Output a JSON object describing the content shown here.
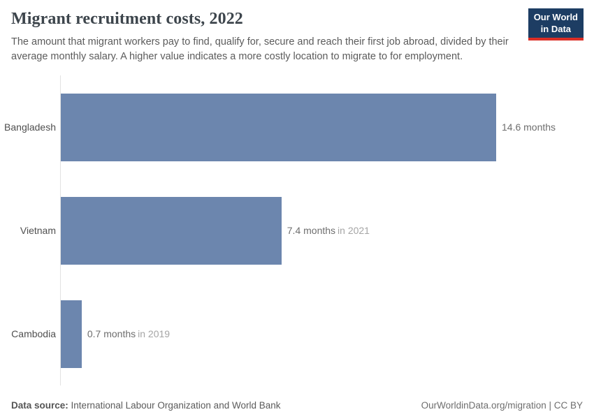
{
  "header": {
    "title": "Migrant recruitment costs, 2022",
    "subtitle": "The amount that migrant workers pay to find, qualify for, secure and reach their first job abroad, divided by their average monthly salary. A higher value indicates a more costly location to migrate to for employment.",
    "logo": {
      "line1": "Our World",
      "line2": "in Data"
    }
  },
  "chart_data": {
    "type": "bar",
    "orientation": "horizontal",
    "title": "Migrant recruitment costs, 2022",
    "unit": "months",
    "xlim": [
      0,
      14.6
    ],
    "grid": false,
    "categories": [
      "Bangladesh",
      "Vietnam",
      "Cambodia"
    ],
    "values": [
      14.6,
      7.4,
      0.7
    ],
    "bars": [
      {
        "category": "Bangladesh",
        "value": 14.6,
        "value_label": "14.6 months",
        "year_note": ""
      },
      {
        "category": "Vietnam",
        "value": 7.4,
        "value_label": "7.4 months",
        "year_note": "in 2021"
      },
      {
        "category": "Cambodia",
        "value": 0.7,
        "value_label": "0.7 months",
        "year_note": "in 2019"
      }
    ]
  },
  "footer": {
    "source_label": "Data source:",
    "source_text": "International Labour Organization and World Bank",
    "right_text": "OurWorldinData.org/migration | CC BY"
  },
  "colors": {
    "bar": "#6c86ae",
    "axis_line": "#e2e2e2",
    "logo_bg": "#1d3d63",
    "logo_accent": "#dc2f26",
    "title_text": "#3d454c",
    "subtitle_text": "#5b5b5b",
    "year_note_text": "#a5a5a5"
  }
}
